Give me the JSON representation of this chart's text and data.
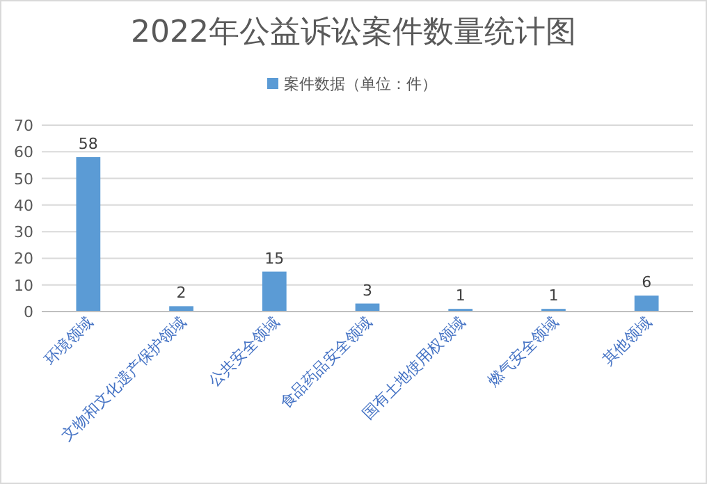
{
  "chart_data": {
    "type": "bar",
    "title": "2022年公益诉讼案件数量统计图",
    "categories": [
      "环境领域",
      "文物和文化遗产保护领域",
      "公共安全领域",
      "食品药品安全领域",
      "国有土地使用权领域",
      "燃气安全领域",
      "其他领域"
    ],
    "series": [
      {
        "name": "案件数据（单位：件）",
        "color": "#5b9bd5",
        "values": [
          58,
          2,
          15,
          3,
          1,
          1,
          6
        ]
      }
    ],
    "ylim": [
      0,
      70
    ],
    "yticks": [
      0,
      10,
      20,
      30,
      40,
      50,
      60,
      70
    ],
    "grid": "y",
    "legend": "top",
    "data_labels": true
  }
}
